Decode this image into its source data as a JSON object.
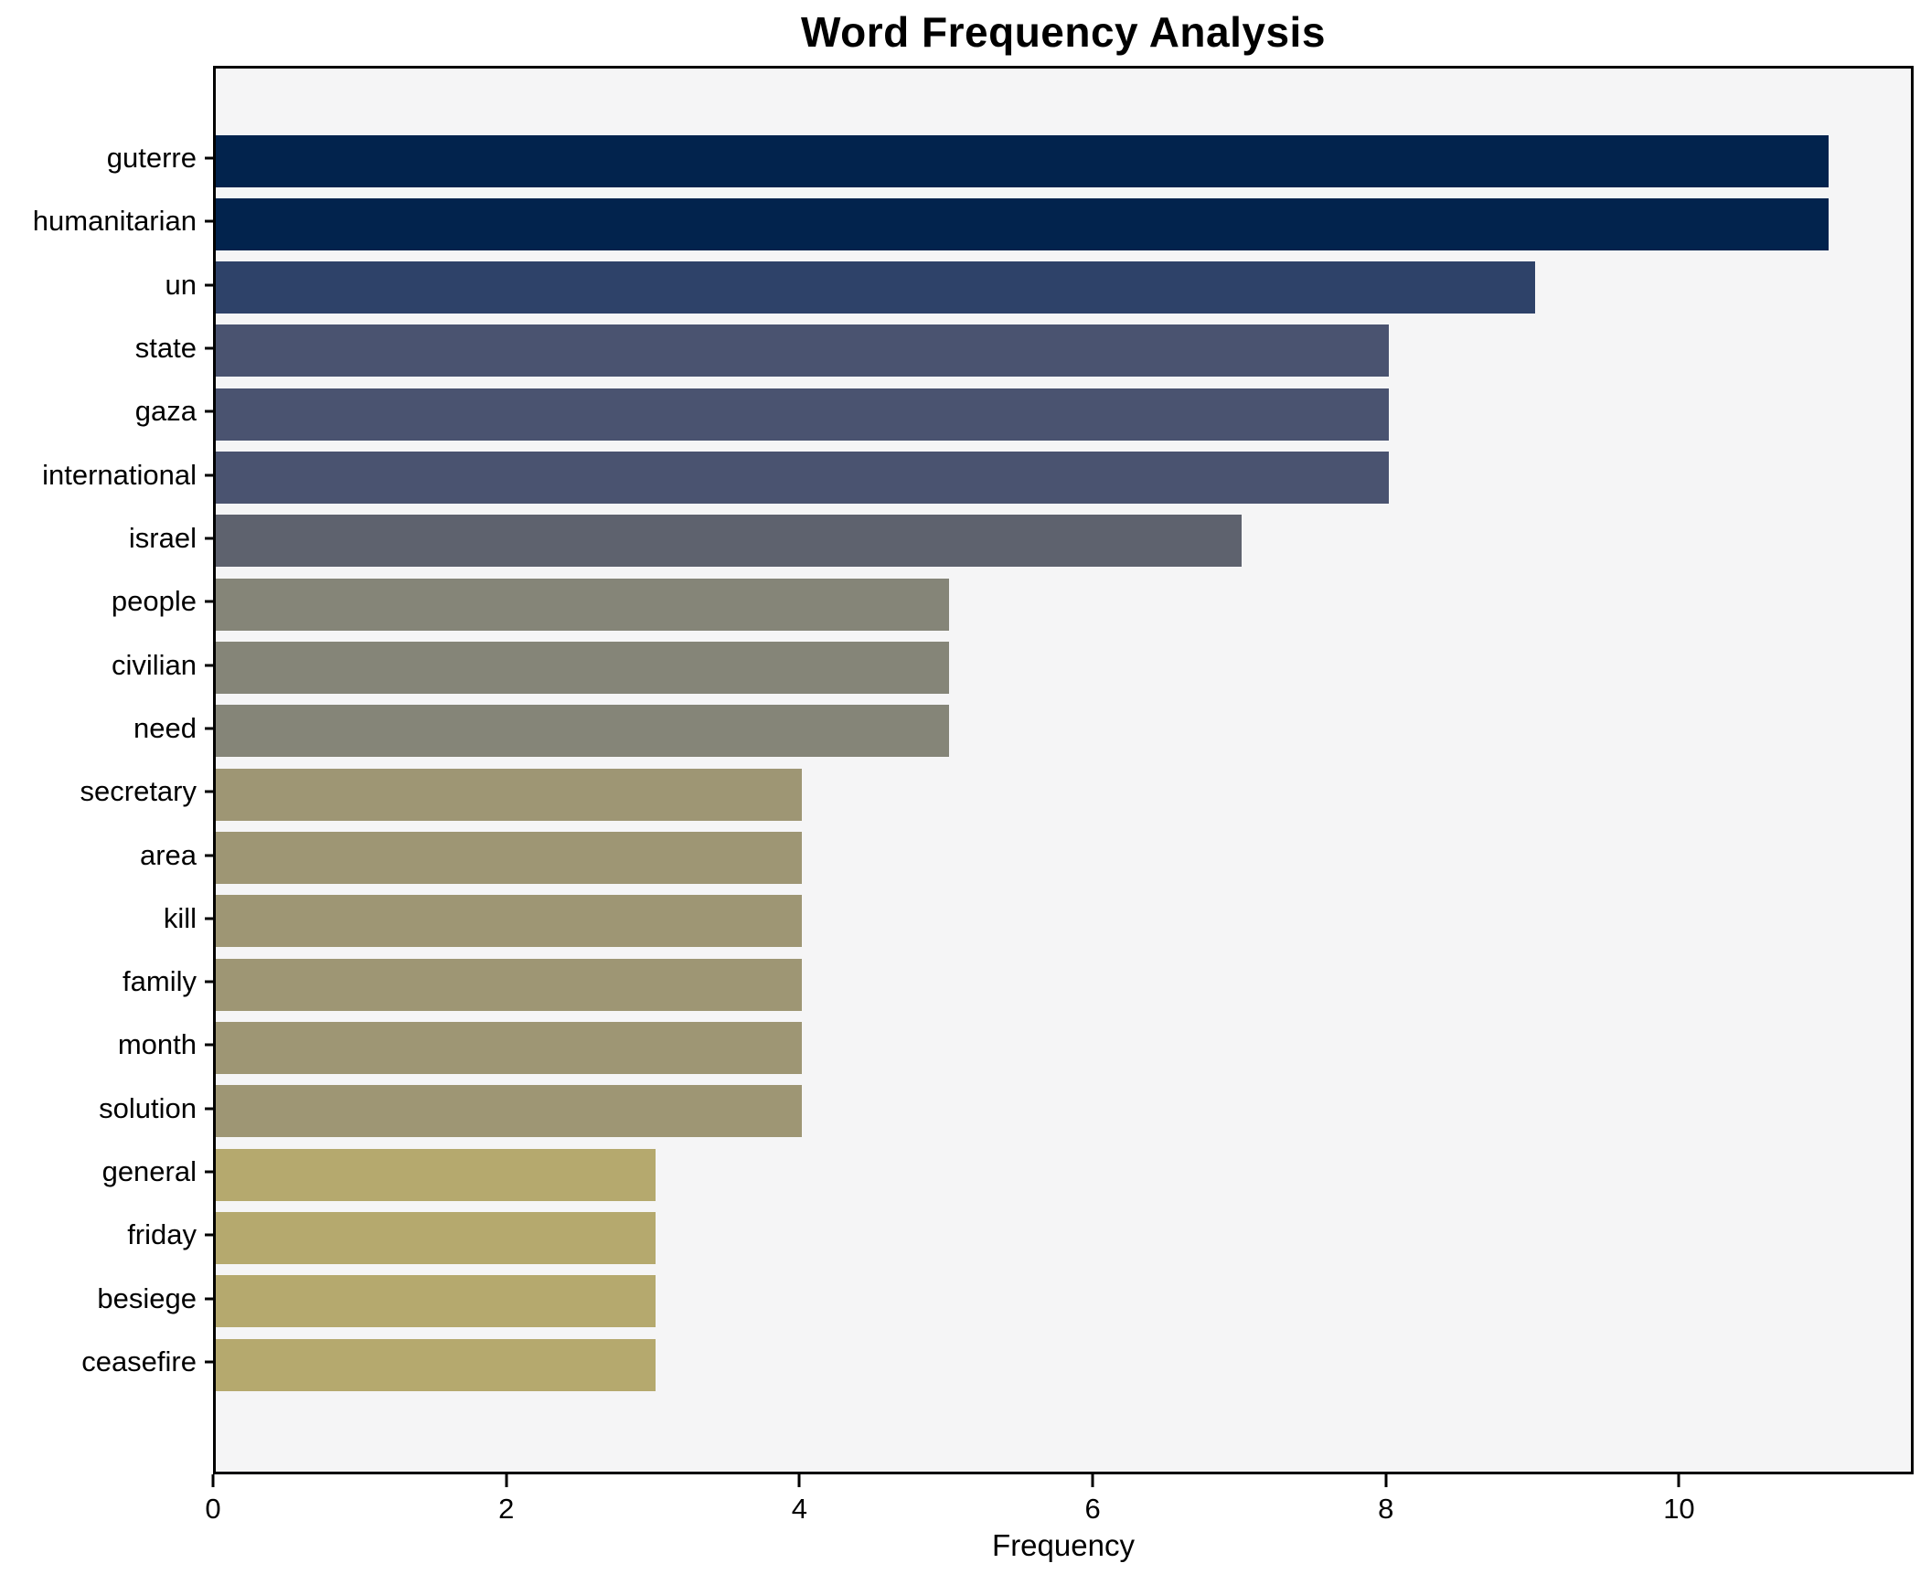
{
  "chart_data": {
    "type": "bar",
    "orientation": "horizontal",
    "title": "Word Frequency Analysis",
    "xlabel": "Frequency",
    "ylabel": "",
    "xlim": [
      0,
      11.6
    ],
    "xticks": [
      0,
      2,
      4,
      6,
      8,
      10
    ],
    "grid": false,
    "legend": "none",
    "categories": [
      "guterre",
      "humanitarian",
      "un",
      "state",
      "gaza",
      "international",
      "israel",
      "people",
      "civilian",
      "need",
      "secretary",
      "area",
      "kill",
      "family",
      "month",
      "solution",
      "general",
      "friday",
      "besiege",
      "ceasefire"
    ],
    "values": [
      11,
      11,
      9,
      8,
      8,
      8,
      7,
      5,
      5,
      5,
      4,
      4,
      4,
      4,
      4,
      4,
      3,
      3,
      3,
      3
    ],
    "bar_colors": [
      "#02234d",
      "#02234d",
      "#2e4269",
      "#4a5370",
      "#4a5370",
      "#4a5370",
      "#5e626e",
      "#858578",
      "#858578",
      "#858578",
      "#9e9674",
      "#9e9674",
      "#9e9674",
      "#9e9674",
      "#9e9674",
      "#9e9674",
      "#b5a96e",
      "#b5a96e",
      "#b5a96e",
      "#b5a96e"
    ],
    "colors": {
      "figure_background": "#ffffff",
      "plot_background": "#f5f5f6",
      "spine": "#000000",
      "text": "#000000"
    }
  }
}
